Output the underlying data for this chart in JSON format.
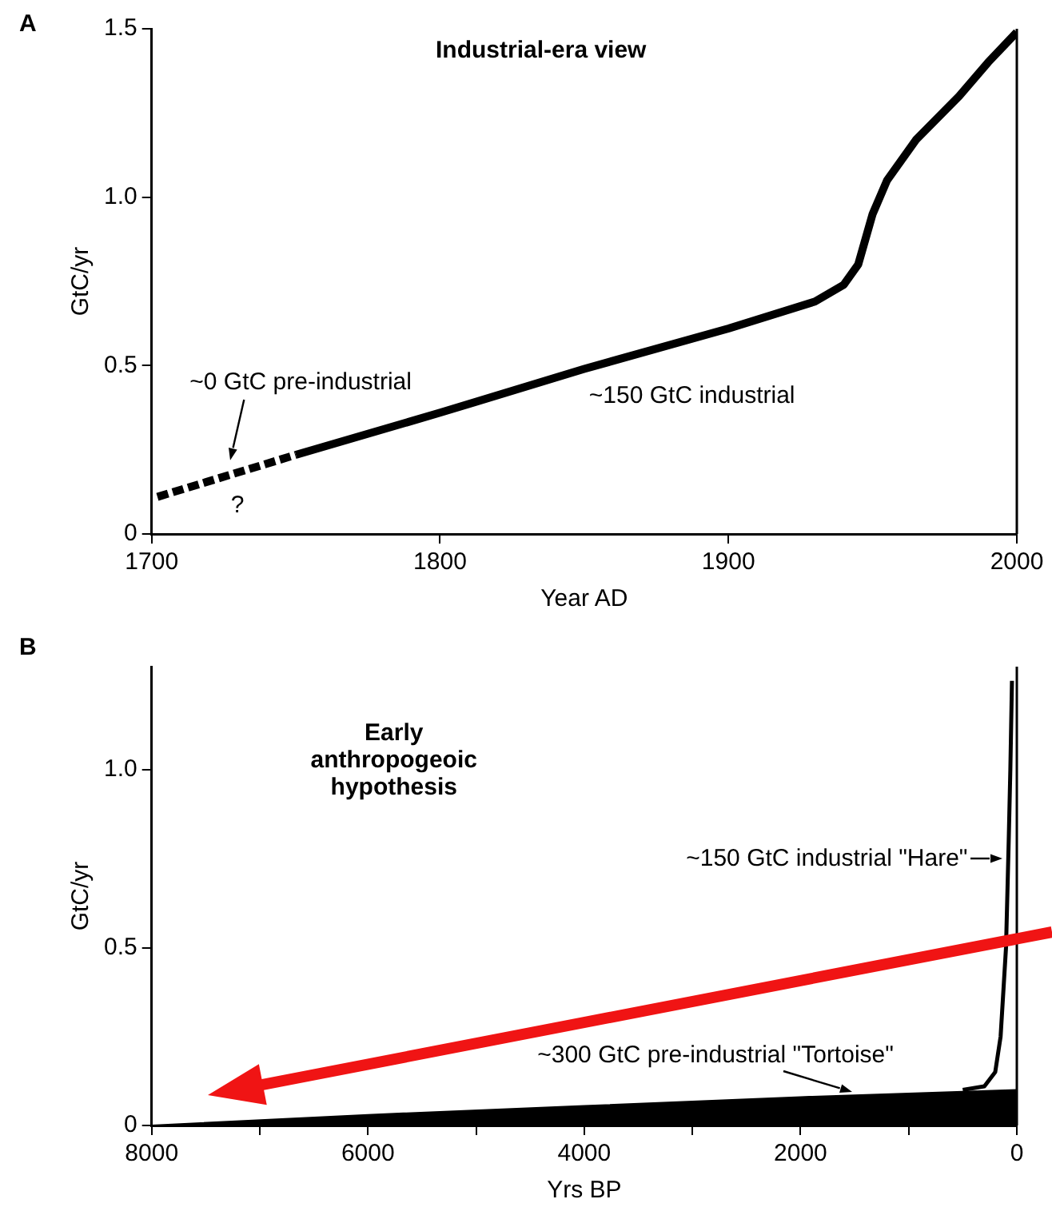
{
  "chart_data": [
    {
      "type": "line",
      "title": "Industrial-era view",
      "xlabel": "Year AD",
      "ylabel": "GtC/yr",
      "xlim": [
        1700,
        2000
      ],
      "ylim": [
        0,
        1.5
      ],
      "xticks": [
        1700,
        1800,
        1900,
        2000
      ],
      "yticks": [
        0,
        {
          "value": 0.5,
          "label": "0.5"
        },
        {
          "value": 1,
          "label": "1.0"
        },
        {
          "value": 1.5,
          "label": "1.5"
        }
      ],
      "grid": false,
      "legend": false,
      "marker": "none",
      "annotations": [
        "A",
        "~0 GtC pre-industrial",
        {
          "text": "?",
          "x": 1727,
          "y": 0.175
        },
        {
          "text": "~150 GtC industrial",
          "x": 1850,
          "y": 0.49
        }
      ],
      "series": [
        {
          "type": "line",
          "line_style": "dashed",
          "color": "#000000",
          "x": [
            1702,
            1750
          ],
          "values": [
            0.11,
            0.235
          ]
        },
        {
          "type": "line",
          "line_style": "solid",
          "color": "#000000",
          "x": [
            1750,
            1800,
            1850,
            1900,
            1930,
            1940,
            1945,
            1950,
            1955,
            1965,
            1980,
            1990,
            2000
          ],
          "values": [
            0.235,
            0.36,
            0.49,
            0.61,
            0.69,
            0.74,
            0.8,
            0.95,
            1.05,
            1.17,
            1.3,
            1.4,
            1.49
          ]
        }
      ]
    },
    {
      "type": "line",
      "title": "Early anthropogeoic hypothesis",
      "xlabel": "Yrs BP",
      "ylabel": "GtC/yr",
      "xlim": [
        8000,
        0
      ],
      "ylim": [
        0,
        1.29
      ],
      "xticks": [
        8000,
        {
          "value": 7000,
          "label": null
        },
        6000,
        {
          "value": 5000,
          "label": null
        },
        4000,
        {
          "value": 3000,
          "label": null
        },
        2000,
        {
          "value": 1000,
          "label": null
        },
        0
      ],
      "yticks": [
        0,
        {
          "value": 0.5,
          "label": "0.5"
        },
        {
          "value": 1,
          "label": "1.0"
        }
      ],
      "grid": false,
      "legend": false,
      "marker": "none",
      "annotations": [
        "B",
        {
          "text": "~150 GtC industrial \"Hare\"",
          "x": 70,
          "y": 0.75
        },
        {
          "text": "~300 GtC pre-industrial \"Tortoise\"",
          "x": 1500,
          "y": 0.08
        }
      ],
      "series": [
        {
          "type": "area",
          "color": "#000000",
          "x": [
            8000,
            6000,
            4000,
            2000,
            0
          ],
          "values": [
            0,
            0.03,
            0.055,
            0.08,
            0.1
          ]
        },
        {
          "type": "line",
          "line_style": "solid",
          "color": "#000000",
          "x": [
            500,
            300,
            200,
            150,
            100,
            75,
            60,
            45
          ],
          "values": [
            0.1,
            0.11,
            0.15,
            0.25,
            0.5,
            0.8,
            1.0,
            1.25
          ]
        }
      ]
    }
  ]
}
